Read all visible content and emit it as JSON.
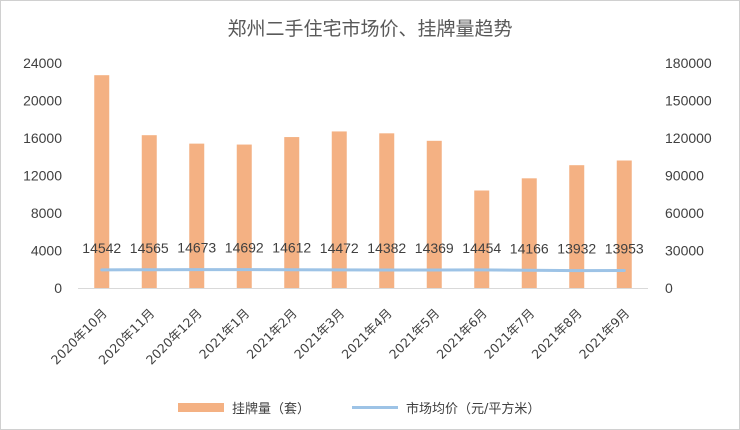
{
  "chart_data": {
    "type": "bar",
    "title": "郑州二手住宅市场价、挂牌量趋势",
    "categories": [
      "2020年10月",
      "2020年11月",
      "2020年12月",
      "2021年1月",
      "2021年2月",
      "2021年3月",
      "2021年4月",
      "2021年5月",
      "2021年6月",
      "2021年7月",
      "2021年8月",
      "2021年9月"
    ],
    "series": [
      {
        "name": "挂牌量（套）",
        "type": "bar",
        "axis": "left",
        "color": "#F4B183",
        "values": [
          22700,
          16300,
          15400,
          15300,
          16100,
          16700,
          16500,
          15700,
          10400,
          11700,
          13100,
          13600
        ]
      },
      {
        "name": "市场均价（元/平方米）",
        "type": "line",
        "axis": "right",
        "color": "#9DC3E6",
        "values": [
          14542,
          14565,
          14673,
          14692,
          14612,
          14472,
          14382,
          14369,
          14454,
          14166,
          13932,
          13953
        ],
        "labels": [
          "14542",
          "14565",
          "14673",
          "14692",
          "14612",
          "14472",
          "14382",
          "14369",
          "14454",
          "14166",
          "13932",
          "13953"
        ]
      }
    ],
    "y_left": {
      "min": 0,
      "max": 24000,
      "ticks": [
        "0",
        "4000",
        "8000",
        "12000",
        "16000",
        "20000",
        "24000"
      ]
    },
    "y_right": {
      "min": 0,
      "max": 180000,
      "ticks": [
        "0",
        "30000",
        "60000",
        "90000",
        "120000",
        "150000",
        "180000"
      ]
    },
    "grid": false,
    "legend_position": "bottom"
  }
}
